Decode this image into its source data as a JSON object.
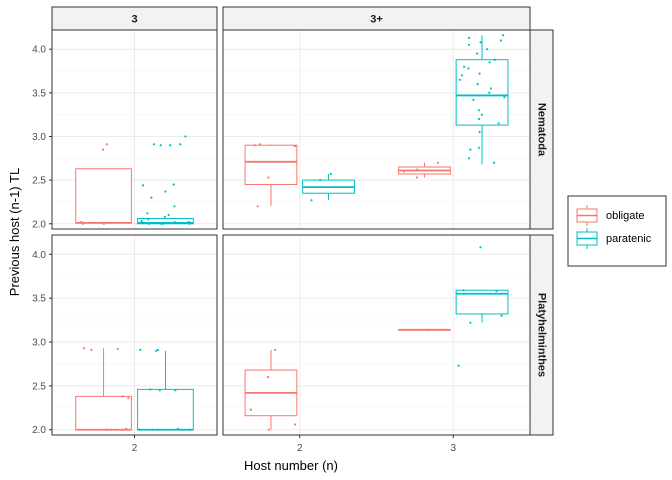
{
  "chart_data": {
    "type": "boxplot",
    "xlabel": "Host number (n)",
    "ylabel": "Previous host (n-1) TL",
    "ylim": [
      1.94,
      4.22
    ],
    "yticks": [
      2.0,
      2.5,
      3.0,
      3.5,
      4.0
    ],
    "ytick_labels": [
      "2.0",
      "2.5",
      "3.0",
      "3.5",
      "4.0"
    ],
    "grid": true,
    "legend_position": "right",
    "legend": [
      {
        "name": "obligate",
        "color": "#F8766D"
      },
      {
        "name": "paratenic",
        "color": "#00BFC4"
      }
    ],
    "facet_columns": [
      {
        "label": "3",
        "x_categories": [
          "2"
        ]
      },
      {
        "label": "3+",
        "x_categories": [
          "2",
          "3"
        ]
      }
    ],
    "facet_rows": [
      "Nematoda",
      "Platyhelminthes"
    ],
    "panels": [
      {
        "row": "Nematoda",
        "col": "3",
        "boxes": [
          {
            "x": "2",
            "group": "obligate",
            "min": 2.0,
            "q1": 2.01,
            "median": 2.01,
            "q3": 2.63,
            "max": 2.63,
            "points": [
              2.85,
              2.91,
              2.0,
              2.01,
              2.01,
              2.0,
              2.02
            ]
          },
          {
            "x": "2",
            "group": "paratenic",
            "min": 2.0,
            "q1": 2.0,
            "median": 2.01,
            "q3": 2.06,
            "max": 2.06,
            "points": [
              3.0,
              2.9,
              2.9,
              2.91,
              2.91,
              2.45,
              2.44,
              2.37,
              2.3,
              2.2,
              2.12,
              2.1,
              2.08,
              2.05,
              2.03,
              2.02,
              2.01,
              2.01,
              2.0,
              2.0,
              2.0,
              2.0,
              2.01,
              2.02
            ]
          }
        ]
      },
      {
        "row": "Nematoda",
        "col": "3+",
        "boxes": [
          {
            "x": "2",
            "group": "obligate",
            "min": 2.2,
            "q1": 2.45,
            "median": 2.71,
            "q3": 2.9,
            "max": 2.91,
            "points": [
              2.91,
              2.9,
              2.89,
              2.53,
              2.2
            ]
          },
          {
            "x": "2",
            "group": "paratenic",
            "min": 2.27,
            "q1": 2.35,
            "median": 2.42,
            "q3": 2.5,
            "max": 2.57,
            "points": [
              2.57,
              2.5,
              2.27
            ]
          },
          {
            "x": "3",
            "group": "obligate",
            "min": 2.53,
            "q1": 2.57,
            "median": 2.61,
            "q3": 2.65,
            "max": 2.7,
            "points": [
              2.7,
              2.62,
              2.53,
              2.6
            ]
          },
          {
            "x": "3",
            "group": "paratenic",
            "min": 2.68,
            "q1": 3.13,
            "median": 3.47,
            "q3": 3.88,
            "max": 4.16,
            "points": [
              4.16,
              4.13,
              4.1,
              4.08,
              4.05,
              4.0,
              3.95,
              3.88,
              3.85,
              3.8,
              3.78,
              3.72,
              3.7,
              3.65,
              3.6,
              3.55,
              3.5,
              3.45,
              3.42,
              3.3,
              3.25,
              3.2,
              3.15,
              3.05,
              2.87,
              2.85,
              2.75,
              2.7
            ]
          }
        ]
      },
      {
        "row": "Platyhelminthes",
        "col": "3",
        "boxes": [
          {
            "x": "2",
            "group": "obligate",
            "min": 2.0,
            "q1": 2.0,
            "median": 2.0,
            "q3": 2.38,
            "max": 2.93,
            "points": [
              2.93,
              2.91,
              2.92,
              2.38,
              2.36,
              2.01,
              2.0,
              2.0,
              2.0,
              2.0
            ]
          },
          {
            "x": "2",
            "group": "paratenic",
            "min": 2.0,
            "q1": 2.0,
            "median": 2.0,
            "q3": 2.46,
            "max": 2.9,
            "points": [
              2.91,
              2.9,
              2.91,
              2.46,
              2.45,
              2.45,
              2.01,
              2.0,
              2.0,
              2.0,
              2.0
            ]
          }
        ]
      },
      {
        "row": "Platyhelminthes",
        "col": "3+",
        "boxes": [
          {
            "x": "2",
            "group": "obligate",
            "min": 2.0,
            "q1": 2.16,
            "median": 2.42,
            "q3": 2.68,
            "max": 2.91,
            "points": [
              2.91,
              2.6,
              2.23,
              2.06,
              2.0
            ]
          },
          {
            "x": "3",
            "group": "obligate",
            "min": 3.14,
            "q1": 3.14,
            "median": 3.14,
            "q3": 3.14,
            "max": 3.14,
            "points": [
              3.14,
              3.14
            ]
          },
          {
            "x": "3",
            "group": "paratenic",
            "min": 3.22,
            "q1": 3.32,
            "median": 3.55,
            "q3": 3.59,
            "max": 3.59,
            "points": [
              4.08,
              3.59,
              3.58,
              3.3,
              3.22,
              2.73
            ]
          }
        ]
      }
    ]
  }
}
